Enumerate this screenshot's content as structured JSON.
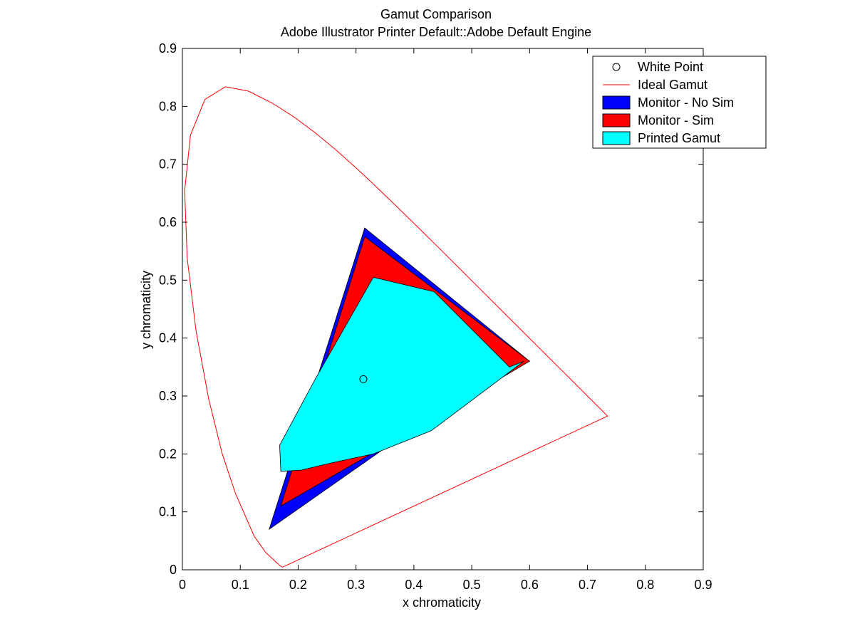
{
  "chart_data": {
    "type": "area",
    "title": "Gamut Comparison",
    "subtitle": "Adobe Illustrator Printer Default::Adobe Default Engine",
    "xlabel": "x chromaticity",
    "ylabel": "y chromaticity",
    "xlim": [
      0,
      0.9
    ],
    "ylim": [
      0,
      0.9
    ],
    "xticks": [
      "0",
      "0.1",
      "0.2",
      "0.3",
      "0.4",
      "0.5",
      "0.6",
      "0.7",
      "0.8",
      "0.9"
    ],
    "yticks": [
      "0",
      "0.1",
      "0.2",
      "0.3",
      "0.4",
      "0.5",
      "0.6",
      "0.7",
      "0.8",
      "0.9"
    ],
    "legend_position": "top-right",
    "grid": false,
    "series": [
      {
        "name": "White Point",
        "kind": "marker",
        "color": "#000000",
        "points": [
          [
            0.3127,
            0.329
          ]
        ]
      },
      {
        "name": "Ideal Gamut",
        "kind": "line",
        "color": "#ff0000",
        "points": [
          [
            0.1741,
            0.005
          ],
          [
            0.1738,
            0.0049
          ],
          [
            0.1714,
            0.0051
          ],
          [
            0.1644,
            0.0109
          ],
          [
            0.144,
            0.0297
          ],
          [
            0.1241,
            0.0578
          ],
          [
            0.0913,
            0.1327
          ],
          [
            0.0687,
            0.2007
          ],
          [
            0.0454,
            0.295
          ],
          [
            0.0235,
            0.4127
          ],
          [
            0.0082,
            0.5384
          ],
          [
            0.0039,
            0.6548
          ],
          [
            0.0139,
            0.7502
          ],
          [
            0.0389,
            0.812
          ],
          [
            0.0743,
            0.8338
          ],
          [
            0.1142,
            0.8262
          ],
          [
            0.1547,
            0.8059
          ],
          [
            0.1929,
            0.7816
          ],
          [
            0.2296,
            0.7543
          ],
          [
            0.2658,
            0.7243
          ],
          [
            0.3016,
            0.6923
          ],
          [
            0.3373,
            0.6589
          ],
          [
            0.3731,
            0.6245
          ],
          [
            0.4087,
            0.5896
          ],
          [
            0.4441,
            0.5547
          ],
          [
            0.4788,
            0.5202
          ],
          [
            0.5125,
            0.4866
          ],
          [
            0.5448,
            0.4544
          ],
          [
            0.5752,
            0.4242
          ],
          [
            0.6029,
            0.3965
          ],
          [
            0.627,
            0.3725
          ],
          [
            0.6482,
            0.3514
          ],
          [
            0.6658,
            0.334
          ],
          [
            0.6801,
            0.3197
          ],
          [
            0.6915,
            0.3083
          ],
          [
            0.7006,
            0.2993
          ],
          [
            0.7079,
            0.292
          ],
          [
            0.714,
            0.2859
          ],
          [
            0.719,
            0.2809
          ],
          [
            0.723,
            0.277
          ],
          [
            0.726,
            0.274
          ],
          [
            0.7347,
            0.2653
          ],
          [
            0.1741,
            0.005
          ]
        ]
      },
      {
        "name": "Monitor - No Sim",
        "kind": "polygon",
        "color": "#0000ff",
        "points": [
          [
            0.15,
            0.07
          ],
          [
            0.315,
            0.59
          ],
          [
            0.6,
            0.36
          ],
          [
            0.45,
            0.28
          ]
        ]
      },
      {
        "name": "Monitor - Sim",
        "kind": "polygon",
        "color": "#ff0000",
        "points": [
          [
            0.17,
            0.11
          ],
          [
            0.315,
            0.575
          ],
          [
            0.6,
            0.36
          ],
          [
            0.43,
            0.26
          ]
        ]
      },
      {
        "name": "Printed Gamut",
        "kind": "polygon",
        "color": "#00ffff",
        "points": [
          [
            0.17,
            0.17
          ],
          [
            0.168,
            0.215
          ],
          [
            0.23,
            0.33
          ],
          [
            0.33,
            0.505
          ],
          [
            0.435,
            0.48
          ],
          [
            0.565,
            0.35
          ],
          [
            0.59,
            0.36
          ],
          [
            0.43,
            0.24
          ],
          [
            0.33,
            0.2
          ],
          [
            0.26,
            0.185
          ],
          [
            0.205,
            0.172
          ],
          [
            0.17,
            0.17
          ]
        ]
      }
    ]
  }
}
